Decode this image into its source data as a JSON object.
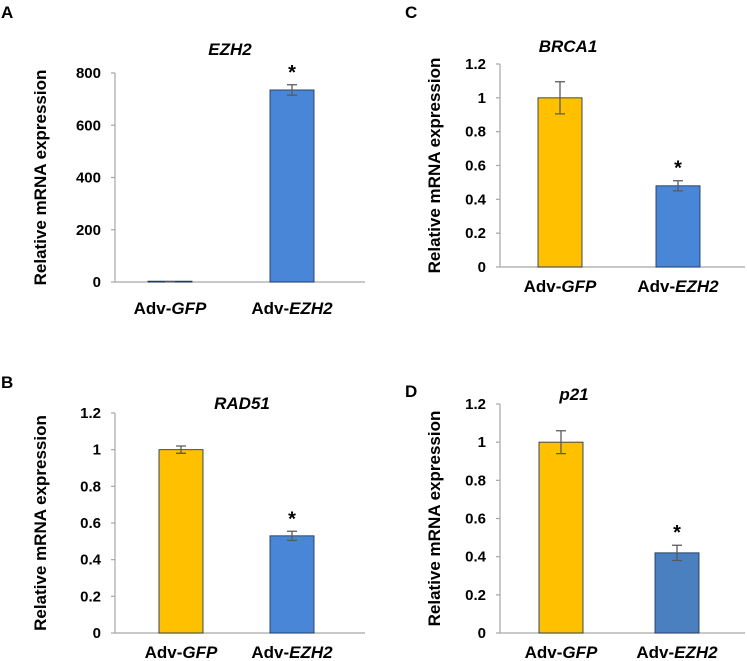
{
  "chart_data": [
    {
      "panel": "A",
      "type": "bar",
      "title": "EZH2",
      "ylabel": "Relative mRNA expression",
      "categories": [
        [
          "Adv-",
          "GFP"
        ],
        [
          "Adv-",
          "EZH2"
        ]
      ],
      "values": [
        1,
        735
      ],
      "errors": [
        0.5,
        20
      ],
      "significance": [
        "",
        "*"
      ],
      "ylim": [
        0,
        800
      ],
      "yticks": [
        0,
        200,
        400,
        600,
        800
      ],
      "ytick_labels": [
        "0",
        "200",
        "400",
        "600",
        "800"
      ],
      "colors": [
        "#ffc000",
        "#4a86d8"
      ]
    },
    {
      "panel": "C",
      "type": "bar",
      "title": "BRCA1",
      "ylabel": "Relative mRNA expression",
      "categories": [
        [
          "Adv-",
          "GFP"
        ],
        [
          "Adv-",
          "EZH2"
        ]
      ],
      "values": [
        1.0,
        0.48
      ],
      "errors": [
        0.095,
        0.03
      ],
      "significance": [
        "",
        "*"
      ],
      "ylim": [
        0,
        1.2
      ],
      "yticks": [
        0,
        0.2,
        0.4,
        0.6,
        0.8,
        1,
        1.2
      ],
      "ytick_labels": [
        "0",
        "0.2",
        "0.4",
        "0.6",
        "0.8",
        "1",
        "1.2"
      ],
      "colors": [
        "#ffc000",
        "#4a86d8"
      ]
    },
    {
      "panel": "B",
      "type": "bar",
      "title": "RAD51",
      "ylabel": "Relative mRNA expression",
      "categories": [
        [
          "Adv-",
          "GFP"
        ],
        [
          "Adv-",
          "EZH2"
        ]
      ],
      "values": [
        1.0,
        0.53
      ],
      "errors": [
        0.02,
        0.025
      ],
      "significance": [
        "",
        "*"
      ],
      "ylim": [
        0,
        1.2
      ],
      "yticks": [
        0,
        0.2,
        0.4,
        0.6,
        0.8,
        1,
        1.2
      ],
      "ytick_labels": [
        "0",
        "0.2",
        "0.4",
        "0.6",
        "0.8",
        "1",
        "1.2"
      ],
      "colors": [
        "#ffc000",
        "#4a86d8"
      ]
    },
    {
      "panel": "D",
      "type": "bar",
      "title": "p21",
      "ylabel": "Relative mRNA expression",
      "categories": [
        [
          "Adv-",
          "GFP"
        ],
        [
          "Adv-",
          "EZH2"
        ]
      ],
      "values": [
        1.0,
        0.42
      ],
      "errors": [
        0.06,
        0.04
      ],
      "significance": [
        "",
        "*"
      ],
      "ylim": [
        0,
        1.2
      ],
      "yticks": [
        0,
        0.2,
        0.4,
        0.6,
        0.8,
        1,
        1.2
      ],
      "ytick_labels": [
        "0",
        "0.2",
        "0.4",
        "0.6",
        "0.8",
        "1",
        "1.2"
      ],
      "colors": [
        "#ffc000",
        "#4a7fc0"
      ]
    }
  ]
}
